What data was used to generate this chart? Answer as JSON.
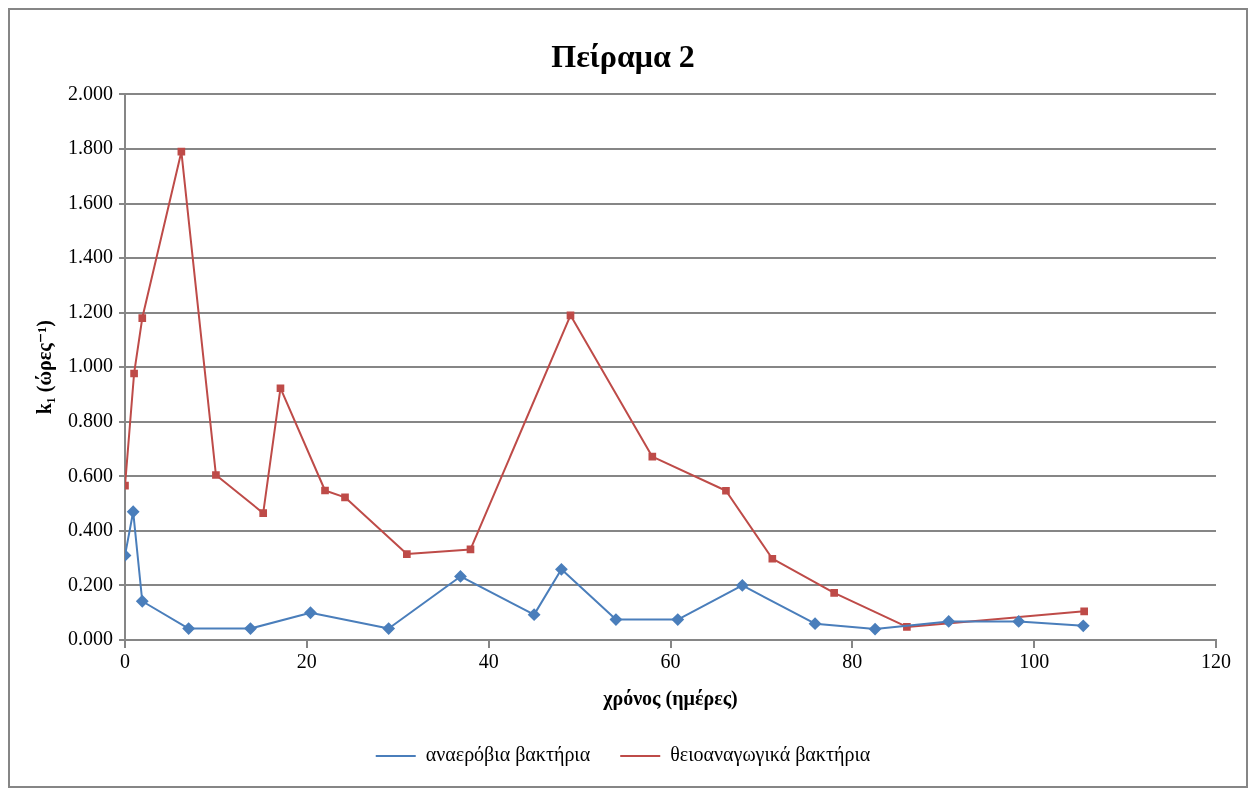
{
  "chart_data": {
    "type": "line",
    "title": "Πείραμα 2",
    "xlabel": "χρόνος (ημέρες)",
    "ylabel": "k₁ (ώρες⁻¹)",
    "xlim": [
      0,
      120
    ],
    "xticks": [
      0,
      20,
      40,
      60,
      80,
      100,
      120
    ],
    "ylim": [
      0,
      2
    ],
    "yticks": [
      {
        "value": 0,
        "label": "0.000"
      },
      {
        "value": 0.2,
        "label": "0.200"
      },
      {
        "value": 0.4,
        "label": "0.400"
      },
      {
        "value": 0.6,
        "label": "0.600"
      },
      {
        "value": 0.8,
        "label": "0.800"
      },
      {
        "value": 1,
        "label": "1.000"
      },
      {
        "value": 1.2,
        "label": "1.200"
      },
      {
        "value": 1.4,
        "label": "1.400"
      },
      {
        "value": 1.6,
        "label": "1.600"
      },
      {
        "value": 1.8,
        "label": "1.800"
      },
      {
        "value": 2,
        "label": "2.000"
      }
    ],
    "grid": "y",
    "legend": "bottom",
    "line_style": "solid",
    "series": [
      {
        "name": "αναερόβια βακτήρια",
        "color": "#4a7ebb",
        "marker": "diamond",
        "x": [
          0,
          0.9,
          1.9,
          7,
          13.8,
          20.4,
          29,
          36.9,
          45,
          48,
          54,
          60.8,
          67.9,
          75.9,
          82.5,
          90.6,
          98.3,
          105.4
        ],
        "values": [
          0.31,
          0.47,
          0.142,
          0.042,
          0.042,
          0.1,
          0.042,
          0.233,
          0.093,
          0.259,
          0.075,
          0.075,
          0.2,
          0.06,
          0.04,
          0.068,
          0.068,
          0.052
        ]
      },
      {
        "name": "θειοαναγωγικά βακτήρια",
        "color": "#be4b48",
        "marker": "square",
        "x": [
          0,
          1,
          1.9,
          6.2,
          10,
          15.2,
          17.1,
          22,
          24.2,
          31,
          38,
          49,
          58,
          66.1,
          71.2,
          78,
          86,
          105.5
        ],
        "values": [
          0.566,
          0.977,
          1.18,
          1.79,
          0.605,
          0.465,
          0.923,
          0.548,
          0.523,
          0.315,
          0.332,
          1.19,
          0.672,
          0.547,
          0.298,
          0.173,
          0.048,
          0.105
        ]
      }
    ]
  }
}
